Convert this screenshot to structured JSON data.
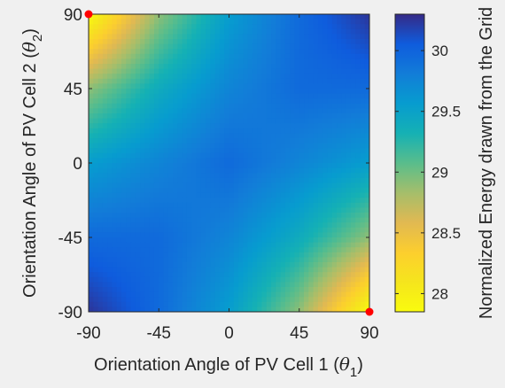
{
  "chart_data": {
    "type": "heatmap",
    "title": "",
    "xlabel": "Orientation Angle of PV Cell 1 (",
    "xlabel_symbol": "θ",
    "xlabel_subscript": "1",
    "xlabel_close": ")",
    "ylabel": "Orientation Angle of PV Cell 2 (",
    "ylabel_symbol": "θ",
    "ylabel_subscript": "2",
    "ylabel_close": ")",
    "xlim": [
      -90,
      90
    ],
    "ylim": [
      -90,
      90
    ],
    "xticks": [
      "-90",
      "-45",
      "0",
      "45",
      "90"
    ],
    "yticks": [
      "-90",
      "-45",
      "0",
      "45",
      "90"
    ],
    "xtick_values": [
      -90,
      -45,
      0,
      45,
      90
    ],
    "ytick_values": [
      -90,
      -45,
      0,
      45,
      90
    ],
    "colorbar": {
      "label": "Normalized Energy drawn from the Grid",
      "range": [
        27.85,
        30.3
      ],
      "ticks": [
        "28",
        "28.5",
        "29",
        "29.5",
        "30"
      ],
      "tick_values": [
        28,
        28.5,
        29,
        29.5,
        30
      ],
      "colormap": "parula"
    },
    "grid_samples": {
      "x": [
        -90,
        -45,
        0,
        45,
        90
      ],
      "y": [
        -90,
        -45,
        0,
        45,
        90
      ],
      "z": [
        [
          30.25,
          29.95,
          29.55,
          28.9,
          27.85
        ],
        [
          29.95,
          29.95,
          29.75,
          29.4,
          28.9
        ],
        [
          29.55,
          29.75,
          29.95,
          29.75,
          29.55
        ],
        [
          28.9,
          29.4,
          29.75,
          29.95,
          29.95
        ],
        [
          27.85,
          28.9,
          29.55,
          29.95,
          30.25
        ]
      ]
    },
    "markers": [
      {
        "x": -90,
        "y": 90,
        "color": "#ff0000"
      },
      {
        "x": 90,
        "y": -90,
        "color": "#ff0000"
      }
    ],
    "background_color": "#f0f0f0"
  }
}
